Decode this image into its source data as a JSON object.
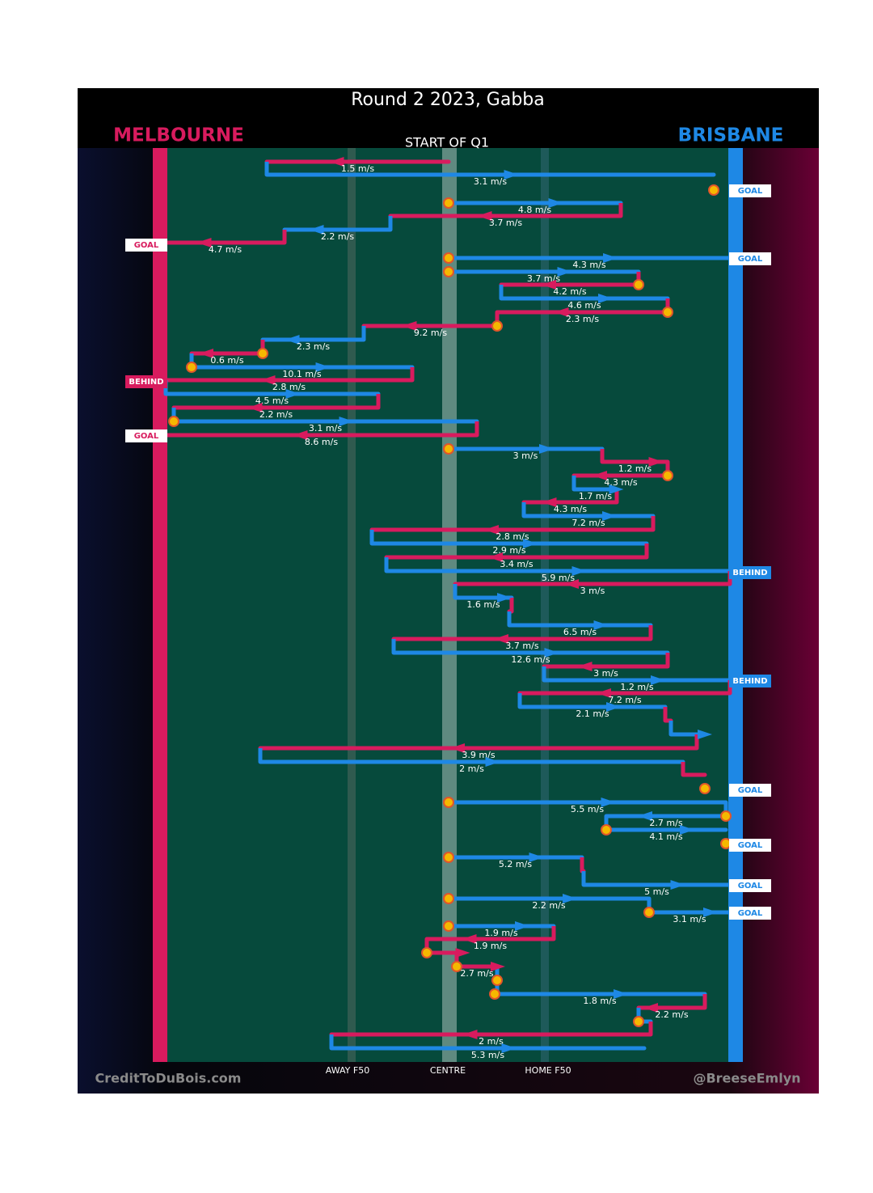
{
  "title": "Round 2 2023, Gabba",
  "team_left": {
    "name": "MELBOURNE",
    "color": "#d81b5e"
  },
  "team_right": {
    "name": "BRISBANE",
    "color": "#1e88e5"
  },
  "subtitle": "START OF Q1",
  "zones": [
    "AWAY F50",
    "CENTRE",
    "HOME F50"
  ],
  "footer_left": "CreditToDuBois.com",
  "footer_right": "@BreeseEmlyn",
  "speeds": [
    "1.5 m/s",
    "3.1 m/s",
    "4.8 m/s",
    "3.7 m/s",
    "2.2 m/s",
    "4.7 m/s",
    "4.3 m/s",
    "3.7 m/s",
    "4.2 m/s",
    "4.6 m/s",
    "2.3 m/s",
    "9.2 m/s",
    "2.3 m/s",
    "0.6 m/s",
    "10.1 m/s",
    "2.8 m/s",
    "4.5 m/s",
    "2.2 m/s",
    "3.1 m/s",
    "8.6 m/s",
    "3 m/s",
    "1.2 m/s",
    "4.3 m/s",
    "1.7 m/s",
    "4.3 m/s",
    "7.2 m/s",
    "2.8 m/s",
    "2.9 m/s",
    "3.4 m/s",
    "5.9 m/s",
    "3 m/s",
    "1.6 m/s",
    "6.5 m/s",
    "3.7 m/s",
    "12.6 m/s",
    "3 m/s",
    "1.2 m/s",
    "7.2 m/s",
    "2.1 m/s",
    "3.9 m/s",
    "2 m/s",
    "5.5 m/s",
    "2.7 m/s",
    "4.1 m/s",
    "5.2 m/s",
    "5 m/s",
    "2.2 m/s",
    "3.1 m/s",
    "1.9 m/s",
    "1.9 m/s",
    "2.7 m/s",
    "1.8 m/s",
    "2.2 m/s",
    "2 m/s",
    "5.3 m/s"
  ],
  "outcomes": [
    "GOAL",
    "GOAL",
    "GOAL",
    "BEHIND",
    "GOAL",
    "BEHIND",
    "BEHIND",
    "GOAL",
    "GOAL",
    "GOAL",
    "GOAL"
  ]
}
